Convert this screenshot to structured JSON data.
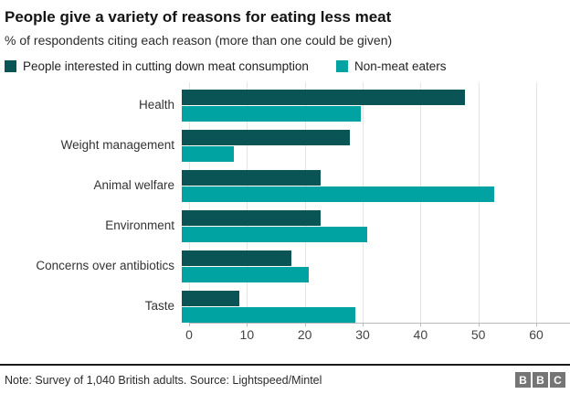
{
  "header": {
    "title": "People give a variety of reasons for eating less meat",
    "subtitle": "% of respondents citing each reason (more than one could be given)"
  },
  "legend": [
    {
      "label": "People interested in cutting down meat consumption",
      "color": "#0b5456"
    },
    {
      "label": "Non-meat eaters",
      "color": "#00a2a2"
    }
  ],
  "chart_data": {
    "type": "bar",
    "orientation": "horizontal",
    "title": "People give a variety of reasons for eating less meat",
    "xlabel": "% of respondents",
    "categories": [
      "Health",
      "Weight management",
      "Animal welfare",
      "Environment",
      "Concerns over antibiotics",
      "Taste"
    ],
    "series": [
      {
        "name": "People interested in cutting down meat consumption",
        "color": "#0b5456",
        "values": [
          49,
          29,
          24,
          24,
          19,
          10
        ]
      },
      {
        "name": "Non-meat eaters",
        "color": "#00a2a2",
        "values": [
          31,
          9,
          54,
          32,
          22,
          30
        ]
      }
    ],
    "xlim": [
      0,
      60
    ],
    "xticks": [
      0,
      10,
      20,
      30,
      40,
      50,
      60
    ],
    "grid": true,
    "legend_position": "top"
  },
  "footer": {
    "note": "Note: Survey of 1,040 British adults. Source: Lightspeed/Mintel",
    "logo_letters": [
      "B",
      "B",
      "C"
    ]
  },
  "colors": {
    "series_dark": "#0b5456",
    "series_teal": "#00a2a2",
    "gridline": "#e4e4e4",
    "axis_line": "#b9b9b9",
    "bbc_gray": "#757575"
  }
}
